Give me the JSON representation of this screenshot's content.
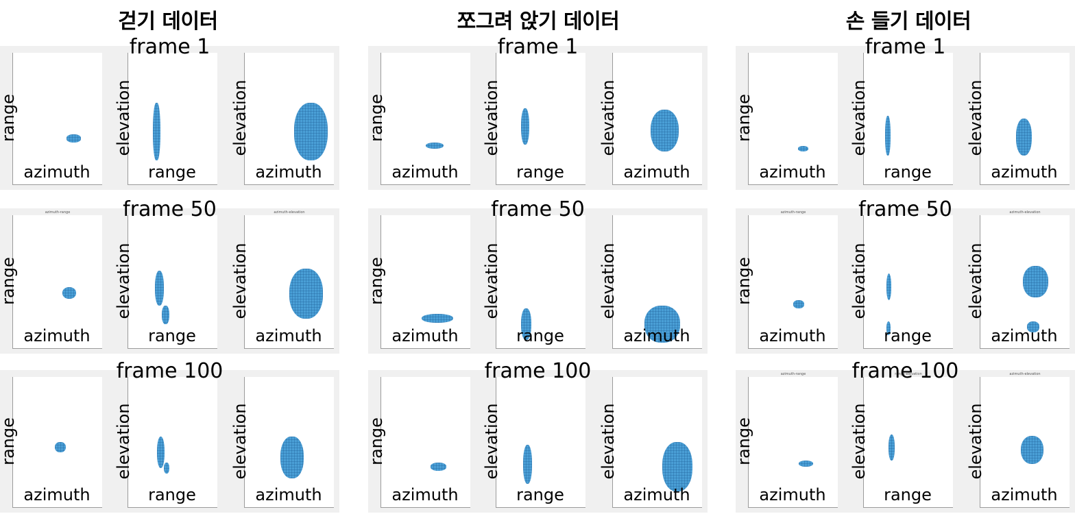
{
  "columns": [
    {
      "title": "걷기 데이터",
      "rows": [
        {
          "frame": "frame 1",
          "plots": [
            {
              "ylabel": "range",
              "xlabel": "azimuth",
              "blobs": []
            },
            {
              "ylabel": "elevation",
              "xlabel": "range",
              "blobs": []
            },
            {
              "ylabel": "elevation",
              "xlabel": "azimuth",
              "blobs": []
            }
          ]
        },
        {
          "frame": "frame 50",
          "plots": [
            {
              "ylabel": "range",
              "xlabel": "azimuth",
              "title": "azimuth-range"
            },
            {
              "ylabel": "elevation",
              "xlabel": "range"
            },
            {
              "ylabel": "elevation",
              "xlabel": "azimuth",
              "title": "azimuth-elevation"
            }
          ]
        },
        {
          "frame": "frame 100",
          "plots": [
            {
              "ylabel": "range",
              "xlabel": "azimuth"
            },
            {
              "ylabel": "elevation",
              "xlabel": "range"
            },
            {
              "ylabel": "elevation",
              "xlabel": "azimuth"
            }
          ]
        }
      ]
    },
    {
      "title": "쪼그려 앉기 데이터",
      "rows": [
        {
          "frame": "frame 1",
          "plots": [
            {
              "ylabel": "range",
              "xlabel": "azimuth"
            },
            {
              "ylabel": "elevation",
              "xlabel": "range"
            },
            {
              "ylabel": "elevation",
              "xlabel": "azimuth"
            }
          ]
        },
        {
          "frame": "frame 50",
          "plots": [
            {
              "ylabel": "range",
              "xlabel": "azimuth"
            },
            {
              "ylabel": "elevation",
              "xlabel": "range"
            },
            {
              "ylabel": "elevation",
              "xlabel": "azimuth"
            }
          ]
        },
        {
          "frame": "frame 100",
          "plots": [
            {
              "ylabel": "range",
              "xlabel": "azimuth"
            },
            {
              "ylabel": "elevation",
              "xlabel": "range"
            },
            {
              "ylabel": "elevation",
              "xlabel": "azimuth"
            }
          ]
        }
      ]
    },
    {
      "title": "손 들기 데이터",
      "rows": [
        {
          "frame": "frame 1",
          "plots": [
            {
              "ylabel": "range",
              "xlabel": "azimuth"
            },
            {
              "ylabel": "elevation",
              "xlabel": "range"
            },
            {
              "ylabel": "elevation",
              "xlabel": "azimuth"
            }
          ]
        },
        {
          "frame": "frame 50",
          "plots": [
            {
              "ylabel": "range",
              "xlabel": "azimuth",
              "title": "azimuth-range"
            },
            {
              "ylabel": "elevation",
              "xlabel": "range"
            },
            {
              "ylabel": "elevation",
              "xlabel": "azimuth",
              "title": "azimuth-elevation"
            }
          ]
        },
        {
          "frame": "frame 100",
          "plots": [
            {
              "ylabel": "range",
              "xlabel": "azimuth",
              "title": "azimuth-range"
            },
            {
              "ylabel": "elevation",
              "xlabel": "range",
              "title": "range-elevation"
            },
            {
              "ylabel": "elevation",
              "xlabel": "azimuth",
              "title": "azimuth-elevation"
            }
          ]
        }
      ]
    }
  ],
  "colors": {
    "point_cloud": "#4a9fd6",
    "panel_bg": "#f0f0f0"
  }
}
